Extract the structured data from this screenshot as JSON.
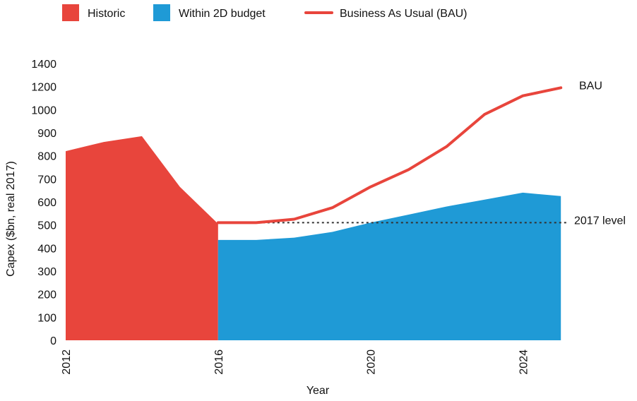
{
  "chart_data": {
    "type": "area",
    "title": "",
    "xlabel": "Year",
    "ylabel": "Capex ($bn, real 2017)",
    "xlim": [
      2012,
      2025.2
    ],
    "ylim": [
      0,
      1400
    ],
    "x_ticks": [
      "2012",
      "2016",
      "2020",
      "2024"
    ],
    "y_ticks": [
      "0",
      "100",
      "200",
      "300",
      "400",
      "500",
      "600",
      "700",
      "800",
      "900",
      "1000",
      "1200",
      "1400"
    ],
    "legend": {
      "placement": "top",
      "entries": [
        {
          "label": "Historic",
          "color": "#E8453C",
          "kind": "area"
        },
        {
          "label": "Within 2D budget",
          "color": "#1F9AD6",
          "kind": "area"
        },
        {
          "label": "Business As Usual (BAU)",
          "color": "#E8453C",
          "kind": "line"
        }
      ]
    },
    "series": [
      {
        "name": "Historic",
        "kind": "area",
        "color": "#E8453C",
        "x": [
          2012,
          2013,
          2014,
          2015,
          2016
        ],
        "y": [
          820,
          860,
          885,
          665,
          505
        ]
      },
      {
        "name": "Within 2D budget",
        "kind": "area",
        "color": "#1F9AD6",
        "x": [
          2016,
          2017,
          2018,
          2019,
          2020,
          2021,
          2022,
          2023,
          2024,
          2025
        ],
        "y": [
          435,
          435,
          445,
          470,
          510,
          545,
          580,
          610,
          640,
          625
        ]
      },
      {
        "name": "Business As Usual (BAU)",
        "kind": "line",
        "color": "#E8453C",
        "x": [
          2016,
          2017,
          2018,
          2019,
          2020,
          2021,
          2022,
          2023,
          2024,
          2025
        ],
        "y": [
          510,
          510,
          525,
          575,
          665,
          740,
          840,
          980,
          1120,
          1190
        ]
      }
    ],
    "reference_line": {
      "label": "2017 level",
      "y": 510,
      "style": "dotted",
      "color": "#333333"
    },
    "annotations": [
      {
        "text": "BAU",
        "series": "Business As Usual (BAU)"
      },
      {
        "text": "2017 level",
        "series": "reference"
      }
    ],
    "grid": false
  }
}
